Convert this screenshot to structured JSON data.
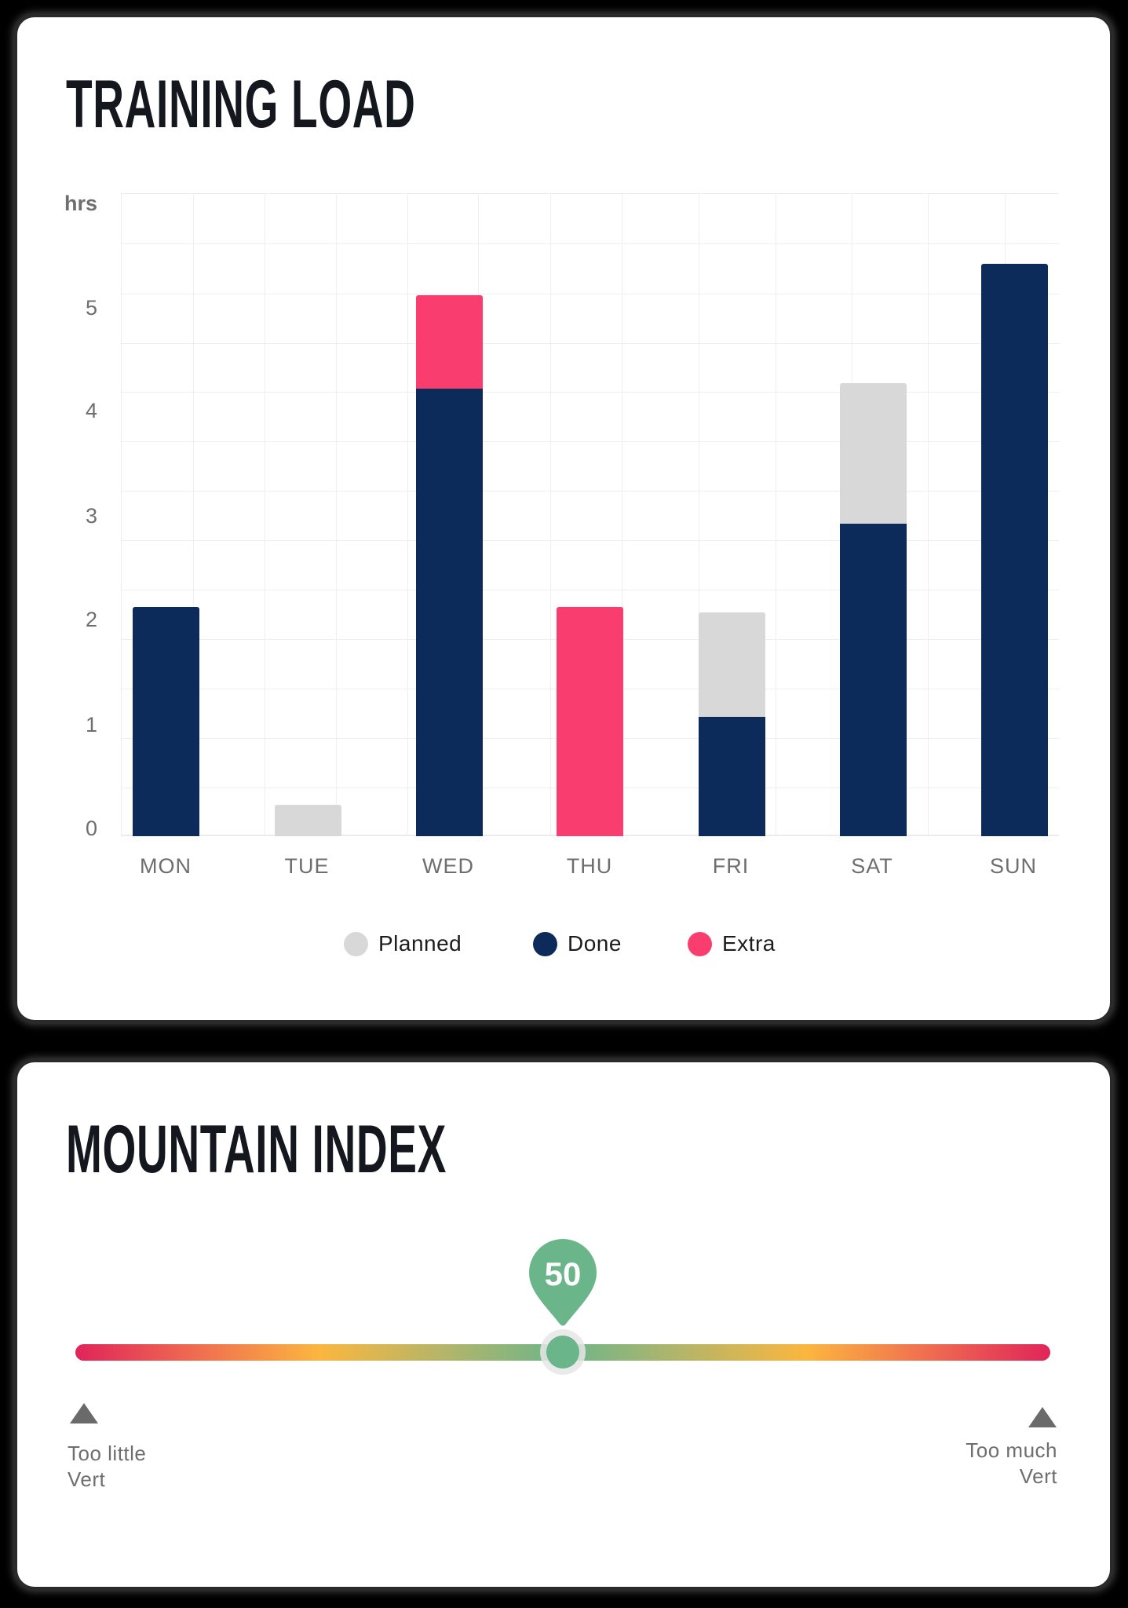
{
  "training_load": {
    "title": "TRAINING LOAD",
    "y_unit": "hrs",
    "y_ticks": [
      "5",
      "4",
      "3",
      "2",
      "1",
      "0"
    ],
    "days": [
      "MON",
      "TUE",
      "WED",
      "THU",
      "FRI",
      "SAT",
      "SUN"
    ],
    "legend": [
      {
        "label": "Planned",
        "color": "#d8d8d8"
      },
      {
        "label": "Done",
        "color": "#0c2a5a"
      },
      {
        "label": "Extra",
        "color": "#f93d6e"
      }
    ]
  },
  "mountain_index": {
    "title": "MOUNTAIN INDEX",
    "value": "50",
    "value_percent": 50,
    "left_label_line1": "Too little",
    "left_label_line2": "Vert",
    "right_label_line1": "Too much",
    "right_label_line2": "Vert",
    "marker_color": "#6bb58a"
  },
  "chart_data": {
    "type": "bar",
    "stacked": true,
    "title": "TRAINING LOAD",
    "xlabel": "",
    "ylabel": "hrs",
    "ylim": [
      0,
      6
    ],
    "grid": true,
    "legend_position": "bottom",
    "categories": [
      "MON",
      "TUE",
      "WED",
      "THU",
      "FRI",
      "SAT",
      "SUN"
    ],
    "series": [
      {
        "name": "Done",
        "color": "#0c2a5a",
        "values": [
          2.2,
          0,
          4.3,
          0,
          1.15,
          3.0,
          5.5
        ]
      },
      {
        "name": "Planned",
        "color": "#d8d8d8",
        "values": [
          0,
          0.3,
          0,
          0,
          1.0,
          1.35,
          0
        ]
      },
      {
        "name": "Extra",
        "color": "#f93d6e",
        "values": [
          0,
          0,
          0.9,
          2.2,
          0,
          0,
          0
        ]
      }
    ]
  }
}
